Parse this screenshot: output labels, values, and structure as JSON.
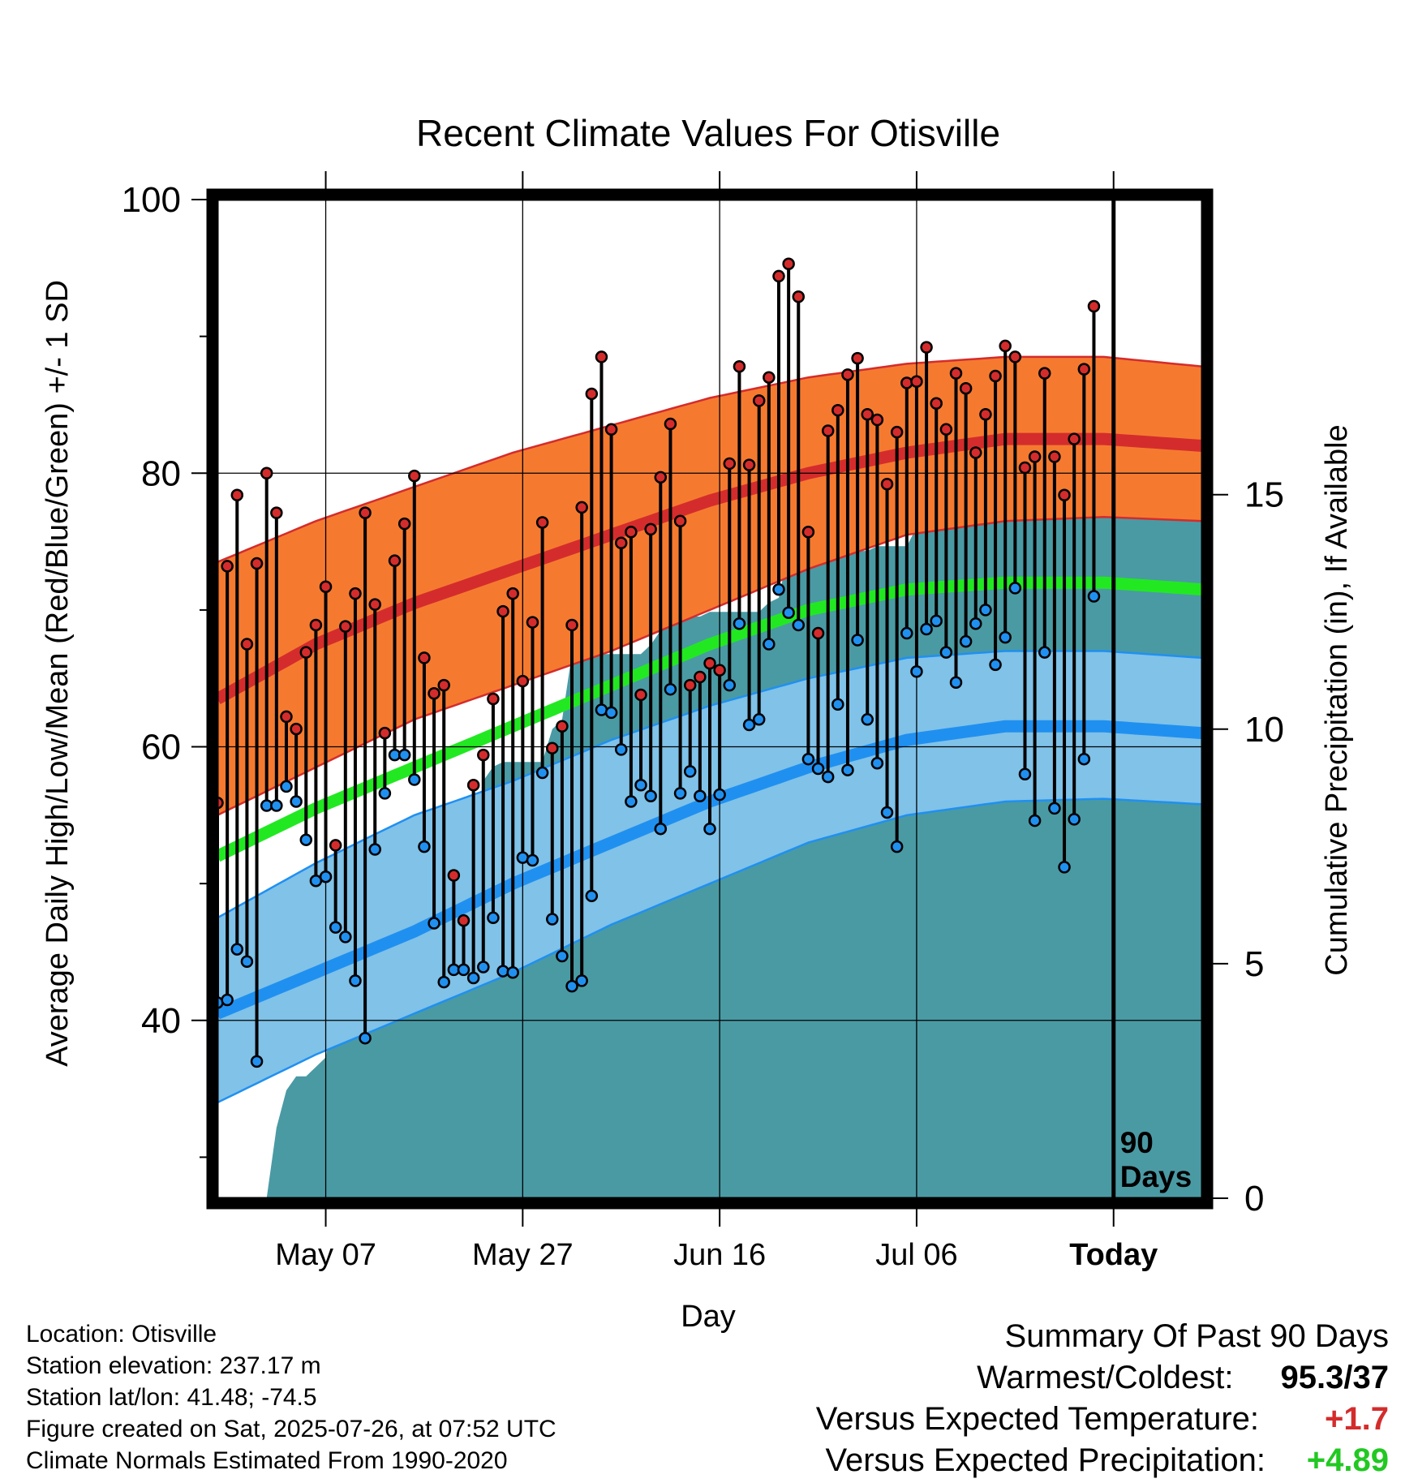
{
  "chart_data": {
    "type": "line",
    "title": "Recent Climate Values For Otisville",
    "xlabel": "Day",
    "ylabel": "Average Daily High/Low/Mean (Red/Blue/Green) +/- 1 SD",
    "y2label": "Cumulative Precipitation (in), If Available",
    "x_tick_labels": [
      "May 07",
      "May 27",
      "Jun 16",
      "Jul 06",
      "Today"
    ],
    "x_tick_days": [
      11,
      31,
      51,
      71,
      91
    ],
    "xlim": [
      0,
      100
    ],
    "y_ticks": [
      40,
      60,
      80,
      100
    ],
    "ylim": [
      27,
      100
    ],
    "y2_ticks": [
      0,
      5,
      10,
      15
    ],
    "y2lim": [
      0,
      16.5
    ],
    "days_label": "90\nDays",
    "grid": true,
    "colors": {
      "high_normal": "#d42c2c",
      "high_band": "#f57a30",
      "low_normal": "#2090f0",
      "low_band": "#80c2e8",
      "mean_normal": "#22e822",
      "precip": "#4a9aa4",
      "obs_high_dot": "#d42c2c",
      "obs_low_dot": "#2090f0"
    },
    "normals": {
      "day": [
        0,
        10,
        20,
        30,
        40,
        50,
        60,
        70,
        80,
        90,
        100
      ],
      "high_mean": [
        63.5,
        67.5,
        70.5,
        73.0,
        75.5,
        78.0,
        80.0,
        81.5,
        82.5,
        82.5,
        82.0
      ],
      "high_sd_upper": [
        73.5,
        76.5,
        79.0,
        81.5,
        83.5,
        85.5,
        87.0,
        88.0,
        88.5,
        88.5,
        87.8
      ],
      "high_sd_lower": [
        55.0,
        58.5,
        62.0,
        64.5,
        67.0,
        70.0,
        73.0,
        75.5,
        76.5,
        76.8,
        76.5
      ],
      "low_mean": [
        40.5,
        43.5,
        46.5,
        50.0,
        53.0,
        56.0,
        58.5,
        60.5,
        61.5,
        61.5,
        61.0
      ],
      "low_sd_upper": [
        47.5,
        51.5,
        55.0,
        57.5,
        60.5,
        63.0,
        65.0,
        66.5,
        67.0,
        67.0,
        66.5
      ],
      "low_sd_lower": [
        34.0,
        37.5,
        40.5,
        43.5,
        47.0,
        50.0,
        53.0,
        55.0,
        56.0,
        56.2,
        55.8
      ],
      "mean": [
        52.0,
        55.5,
        58.5,
        61.5,
        64.5,
        67.5,
        70.0,
        71.5,
        72.0,
        72.0,
        71.5
      ]
    },
    "observed": {
      "day": [
        0,
        1,
        2,
        3,
        4,
        5,
        6,
        7,
        8,
        9,
        10,
        11,
        12,
        13,
        14,
        15,
        16,
        17,
        18,
        19,
        20,
        21,
        22,
        23,
        24,
        25,
        26,
        27,
        28,
        29,
        30,
        31,
        32,
        33,
        34,
        35,
        36,
        37,
        38,
        39,
        40,
        41,
        42,
        43,
        44,
        45,
        46,
        47,
        48,
        49,
        50,
        51,
        52,
        53,
        54,
        55,
        56,
        57,
        58,
        59,
        60,
        61,
        62,
        63,
        64,
        65,
        66,
        67,
        68,
        69,
        70,
        71,
        72,
        73,
        74,
        75,
        76,
        77,
        78,
        79,
        80,
        81,
        82,
        83,
        84,
        85,
        86,
        87,
        88,
        89,
        90
      ],
      "high": [
        55.9,
        73.2,
        78.4,
        67.5,
        73.4,
        80.0,
        77.1,
        62.2,
        61.3,
        66.9,
        68.9,
        71.7,
        52.8,
        68.8,
        71.2,
        77.1,
        70.4,
        61.0,
        73.6,
        76.3,
        79.8,
        66.5,
        63.9,
        64.5,
        50.6,
        47.3,
        57.2,
        59.4,
        63.5,
        69.9,
        71.2,
        64.8,
        69.1,
        76.4,
        59.9,
        61.5,
        68.9,
        77.5,
        85.8,
        88.5,
        83.2,
        74.9,
        75.7,
        63.8,
        75.9,
        79.7,
        83.6,
        76.5,
        64.5,
        65.1,
        66.1,
        65.6,
        80.7,
        87.8,
        80.6,
        85.3,
        87.0,
        94.4,
        95.3,
        92.9,
        75.7,
        68.3,
        83.1,
        84.6,
        87.2,
        88.4,
        84.3,
        83.9,
        79.2,
        83.0,
        86.6,
        86.7,
        89.2,
        85.1,
        83.2,
        87.3,
        86.2,
        81.5,
        84.3,
        87.1,
        89.3,
        88.5,
        80.4,
        81.2,
        87.3,
        81.2,
        78.4,
        82.5,
        87.6,
        92.2,
        null
      ],
      "low": [
        41.3,
        41.5,
        45.2,
        44.3,
        37.0,
        55.7,
        55.7,
        57.1,
        56.0,
        53.2,
        50.2,
        50.5,
        46.8,
        46.1,
        42.9,
        38.7,
        52.5,
        56.6,
        59.4,
        59.4,
        57.6,
        52.7,
        47.1,
        42.8,
        43.7,
        43.7,
        43.1,
        43.9,
        47.5,
        43.6,
        43.5,
        51.9,
        51.7,
        58.1,
        47.4,
        44.7,
        42.5,
        42.9,
        49.1,
        62.7,
        62.5,
        59.8,
        56.0,
        57.2,
        56.4,
        54.0,
        64.2,
        56.6,
        58.2,
        56.4,
        54.0,
        56.5,
        64.5,
        69.0,
        61.6,
        62.0,
        67.5,
        71.5,
        69.8,
        68.9,
        59.1,
        58.4,
        57.8,
        63.1,
        58.3,
        67.8,
        62.0,
        58.8,
        55.2,
        52.7,
        68.3,
        65.5,
        68.6,
        69.2,
        66.9,
        64.7,
        67.7,
        69.0,
        70.0,
        66.0,
        68.0,
        71.6,
        58.0,
        54.6,
        66.9,
        55.5,
        51.2,
        54.7,
        59.1,
        71.0,
        null
      ]
    },
    "precip_cumulative": {
      "day": [
        0,
        5,
        6,
        7,
        8,
        9,
        10,
        11,
        12,
        13,
        14,
        15,
        16,
        17,
        18,
        19,
        20,
        21,
        22,
        23,
        24,
        25,
        26,
        27,
        28,
        29,
        30,
        31,
        32,
        33,
        34,
        35,
        36,
        37,
        38,
        39,
        40,
        41,
        42,
        43,
        44,
        45,
        46,
        47,
        48,
        49,
        50,
        51,
        52,
        53,
        54,
        55,
        56,
        57,
        58,
        59,
        60,
        61,
        62,
        63,
        64,
        65,
        66,
        67,
        68,
        69,
        70,
        71,
        72,
        73,
        74,
        75,
        76,
        77,
        78,
        79,
        80,
        81,
        82,
        83,
        84,
        85,
        86,
        87,
        88,
        89,
        90,
        91,
        92,
        93,
        94,
        95,
        96,
        97,
        98,
        99,
        100
      ],
      "value": [
        0,
        0,
        1.5,
        2.3,
        2.6,
        2.6,
        2.8,
        3.0,
        4.3,
        4.6,
        4.6,
        4.6,
        4.8,
        5.5,
        6.0,
        6.2,
        6.2,
        6.2,
        6.2,
        6.2,
        6.2,
        6.6,
        6.9,
        8.9,
        9.2,
        9.3,
        9.3,
        9.3,
        9.3,
        9.3,
        10.0,
        10.2,
        11.6,
        11.6,
        11.6,
        11.6,
        11.6,
        11.6,
        11.6,
        11.6,
        11.8,
        12.1,
        12.2,
        12.3,
        12.4,
        12.4,
        12.5,
        12.5,
        12.5,
        12.5,
        12.5,
        12.5,
        12.7,
        12.8,
        13.8,
        13.8,
        13.8,
        13.8,
        13.8,
        13.8,
        13.8,
        13.8,
        13.8,
        13.9,
        13.9,
        13.9,
        13.9,
        14.3,
        14.4,
        14.6,
        15.2,
        15.2,
        15.2,
        15.2,
        15.2,
        15.2,
        15.2,
        15.2,
        15.2,
        15.2,
        15.2,
        15.2,
        15.2,
        15.2,
        15.2,
        15.2,
        15.2,
        15.2,
        15.2,
        15.2,
        15.2,
        15.2,
        15.2,
        15.2,
        15.2,
        15.2,
        15.2,
        15.2,
        15.2,
        15.2,
        15.2
      ]
    }
  },
  "info": {
    "location": "Location: Otisville",
    "elevation": "Station elevation: 237.17 m",
    "latlon": "Station lat/lon: 41.48; -74.5",
    "created": "Figure created on Sat, 2025-07-26, at 07:52 UTC",
    "normals_period": "Climate Normals Estimated From 1990-2020"
  },
  "summary": {
    "heading": "Summary Of Past 90 Days",
    "extremes_label": "Warmest/Coldest:",
    "extremes_value": "95.3/37",
    "temp_label": "Versus Expected Temperature:",
    "temp_value": "+1.7",
    "temp_color": "#d42c2c",
    "precip_label": "Versus Expected Precipitation:",
    "precip_value": "+4.89",
    "precip_color": "#22c822"
  }
}
